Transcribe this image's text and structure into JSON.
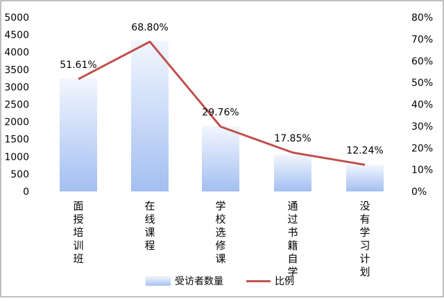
{
  "chart_data": {
    "type": "bar+line",
    "categories": [
      "面授培训班",
      "在线课程",
      "学校选修课",
      "通过书籍自学",
      "没有学习计划"
    ],
    "series": [
      {
        "name": "受访者数量",
        "type": "bar",
        "axis": "left",
        "values": [
          3250,
          4330,
          1880,
          1060,
          760
        ],
        "color": "#a9c4f2"
      },
      {
        "name": "比例",
        "type": "line",
        "axis": "right",
        "values": [
          51.61,
          68.8,
          29.76,
          17.85,
          12.24
        ],
        "labels": [
          "51.61%",
          "68.80%",
          "29.76%",
          "17.85%",
          "12.24%"
        ],
        "color": "#c0504d"
      }
    ],
    "y_left": {
      "ylim": [
        0,
        5000
      ],
      "ticks": [
        "0",
        "500",
        "1000",
        "1500",
        "2000",
        "2500",
        "3000",
        "3500",
        "4000",
        "4500",
        "5000"
      ]
    },
    "y_right": {
      "ylim": [
        0,
        80
      ],
      "ticks": [
        "0%",
        "10%",
        "20%",
        "30%",
        "40%",
        "50%",
        "60%",
        "70%",
        "80%"
      ]
    },
    "grid": false,
    "legend": "bottom"
  }
}
